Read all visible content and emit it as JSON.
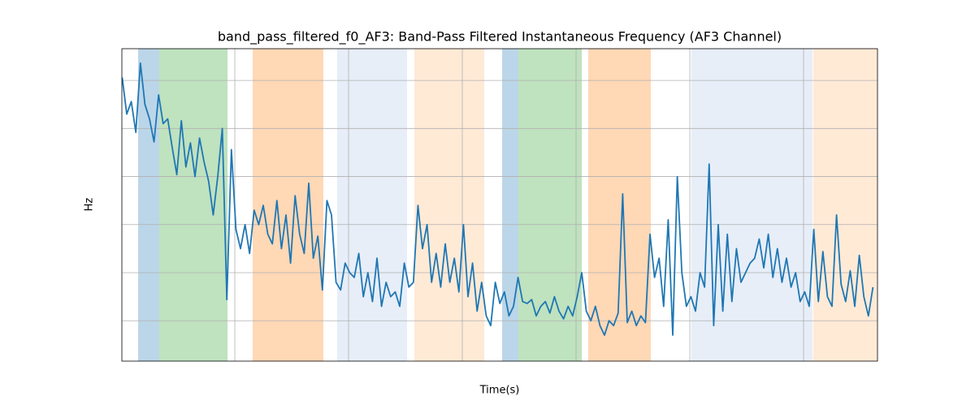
{
  "chart_data": {
    "type": "line",
    "title": "band_pass_filtered_f0_AF3: Band-Pass Filtered Instantaneous Frequency (AF3 Channel)",
    "xlabel": "Time(s)",
    "ylabel": "Hz",
    "xlim": [
      7,
      6650
    ],
    "ylim": [
      10.8,
      43.3
    ],
    "xticks": [
      1000,
      2000,
      3000,
      4000,
      5000,
      6000
    ],
    "yticks": [
      15,
      20,
      25,
      30,
      35,
      40
    ],
    "grid": true,
    "spans": [
      {
        "start": 150,
        "end": 336,
        "color": "#1f77b4",
        "alpha": 0.3
      },
      {
        "start": 336,
        "end": 936,
        "color": "#2ca02c",
        "alpha": 0.3
      },
      {
        "start": 1157,
        "end": 1778,
        "color": "#ff7f0e",
        "alpha": 0.3
      },
      {
        "start": 1900,
        "end": 2514,
        "color": "#aec7e8",
        "alpha": 0.3
      },
      {
        "start": 2578,
        "end": 3193,
        "color": "#ffbb78",
        "alpha": 0.3
      },
      {
        "start": 3350,
        "end": 3493,
        "color": "#1f77b4",
        "alpha": 0.3
      },
      {
        "start": 3493,
        "end": 4050,
        "color": "#2ca02c",
        "alpha": 0.3
      },
      {
        "start": 4107,
        "end": 4657,
        "color": "#ff7f0e",
        "alpha": 0.3
      },
      {
        "start": 5014,
        "end": 6079,
        "color": "#aec7e8",
        "alpha": 0.3
      },
      {
        "start": 6086,
        "end": 6650,
        "color": "#ffbb78",
        "alpha": 0.3
      }
    ],
    "series": [
      {
        "color": "#1f77b4",
        "x": [
          10,
          50,
          90,
          130,
          170,
          210,
          250,
          290,
          330,
          370,
          410,
          450,
          490,
          530,
          570,
          610,
          650,
          690,
          730,
          770,
          810,
          850,
          890,
          930,
          970,
          1010,
          1050,
          1090,
          1130,
          1170,
          1210,
          1250,
          1290,
          1330,
          1370,
          1410,
          1450,
          1490,
          1530,
          1570,
          1610,
          1650,
          1690,
          1730,
          1770,
          1810,
          1850,
          1890,
          1930,
          1970,
          2010,
          2050,
          2090,
          2130,
          2170,
          2210,
          2250,
          2290,
          2330,
          2370,
          2410,
          2450,
          2490,
          2530,
          2570,
          2610,
          2650,
          2690,
          2730,
          2770,
          2810,
          2850,
          2890,
          2930,
          2970,
          3010,
          3050,
          3090,
          3130,
          3170,
          3210,
          3250,
          3290,
          3330,
          3370,
          3410,
          3450,
          3490,
          3530,
          3570,
          3610,
          3650,
          3690,
          3730,
          3770,
          3810,
          3850,
          3890,
          3930,
          3970,
          4010,
          4050,
          4090,
          4130,
          4170,
          4210,
          4250,
          4290,
          4330,
          4370,
          4410,
          4450,
          4490,
          4530,
          4570,
          4610,
          4650,
          4690,
          4730,
          4770,
          4810,
          4850,
          4890,
          4930,
          4970,
          5010,
          5050,
          5090,
          5130,
          5170,
          5210,
          5250,
          5290,
          5330,
          5370,
          5410,
          5450,
          5490,
          5530,
          5570,
          5610,
          5650,
          5690,
          5730,
          5770,
          5810,
          5850,
          5890,
          5930,
          5970,
          6010,
          6050,
          6090,
          6130,
          6170,
          6210,
          6250,
          6290,
          6330,
          6370,
          6410,
          6450,
          6490,
          6530,
          6570,
          6610
        ],
        "values": [
          40.3,
          36.5,
          37.8,
          34.6,
          41.8,
          37.5,
          36,
          33.6,
          38.5,
          35.5,
          36,
          33,
          30.2,
          35.8,
          31,
          33.5,
          30,
          34,
          31.5,
          29.5,
          26,
          30,
          35,
          17.2,
          32.8,
          24.5,
          22.5,
          25,
          22,
          26.5,
          25,
          27,
          24,
          23,
          27.5,
          22.5,
          26,
          21,
          28,
          24,
          22,
          29.3,
          21.5,
          23.8,
          18.2,
          27.5,
          26,
          19,
          18.2,
          21,
          20,
          19.5,
          22,
          17.5,
          20,
          17,
          21.5,
          16.5,
          19,
          17.5,
          18,
          16.5,
          21,
          18.5,
          19,
          27,
          22.5,
          25,
          19,
          22,
          18.5,
          23,
          19,
          21.5,
          18,
          25,
          17.5,
          21,
          16,
          19,
          15.5,
          14.5,
          19,
          16.8,
          18,
          15.5,
          16.5,
          19.5,
          17,
          16.8,
          17.2,
          15.5,
          16.5,
          17,
          15.8,
          17.5,
          16,
          15.2,
          16.5,
          15.5,
          17.5,
          20,
          16,
          15,
          16.5,
          14.5,
          13.5,
          15,
          14.5,
          15.8,
          28.2,
          14.8,
          16,
          14.5,
          15.5,
          14.8,
          24,
          19.5,
          21.5,
          16.5,
          25.5,
          13.5,
          30,
          20,
          16.5,
          17.5,
          16,
          20,
          18.5,
          31.3,
          14.5,
          25,
          16,
          24,
          17,
          22.5,
          19,
          20,
          21,
          21.5,
          23.5,
          20.5,
          24,
          19.5,
          22.5,
          19,
          21.5,
          18.5,
          20,
          17,
          18,
          16.5,
          24.5,
          17,
          22.2,
          17.5,
          16.5,
          26,
          18.8,
          17,
          20.2,
          16.5,
          21.8,
          17.5,
          15.5,
          18.5
        ]
      }
    ]
  }
}
